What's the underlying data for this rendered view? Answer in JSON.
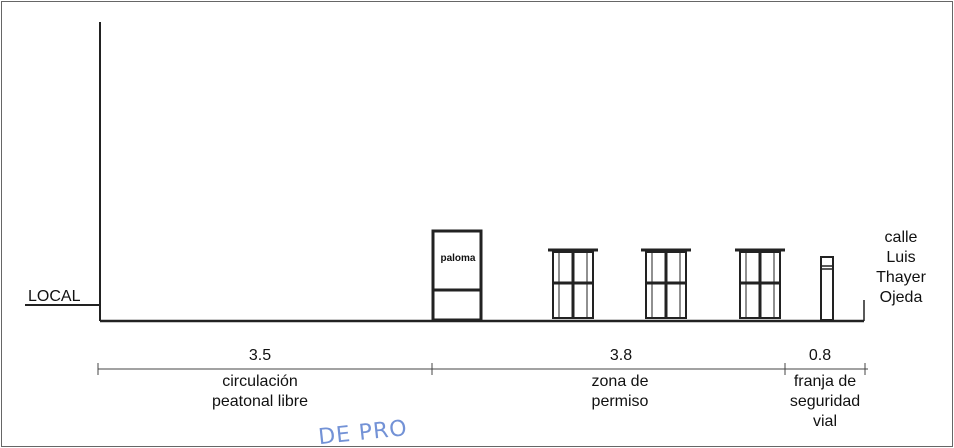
{
  "labels": {
    "local": "LOCAL",
    "street": [
      "calle",
      "Luis",
      "Thayer",
      "Ojeda"
    ],
    "kiosk": "paloma"
  },
  "dimensions": [
    {
      "value": "3.5",
      "zone": [
        "circulación",
        "peatonal libre"
      ]
    },
    {
      "value": "3.8",
      "zone": [
        "zona de",
        "permiso"
      ]
    },
    {
      "value": "0.8",
      "zone": [
        "franja de",
        "seguridad",
        "vial"
      ]
    }
  ],
  "stamp_text": "DE PRO",
  "colors": {
    "line": "#222222",
    "stamp": "#5b7fd0"
  }
}
